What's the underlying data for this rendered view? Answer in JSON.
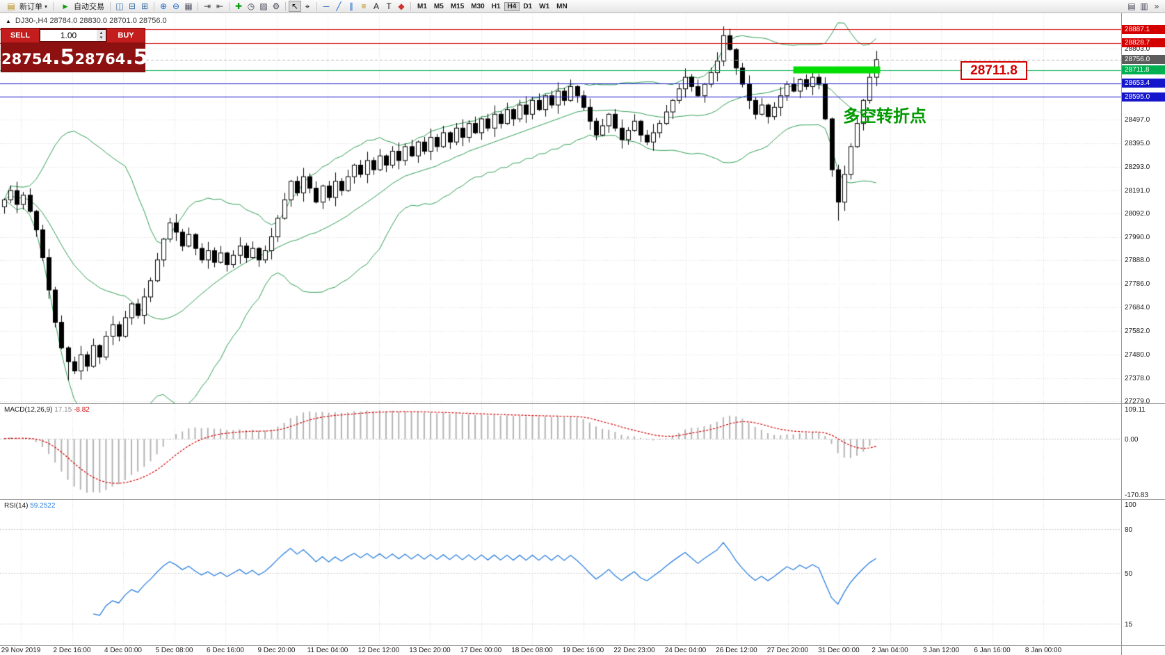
{
  "toolbar": {
    "new_order_label": "新订单",
    "auto_trading_label": "自动交易",
    "timeframes": [
      "M1",
      "M5",
      "M15",
      "M30",
      "H1",
      "H4",
      "D1",
      "W1",
      "MN"
    ],
    "active_timeframe": "H4",
    "icons": [
      {
        "name": "cascade-windows-icon",
        "glyph": "◫",
        "color": "#3a6ea5"
      },
      {
        "name": "tile-windows-horizontal-icon",
        "glyph": "⊟",
        "color": "#3a6ea5"
      },
      {
        "name": "tile-windows-vertical-icon",
        "glyph": "⊞",
        "color": "#3a6ea5"
      },
      {
        "sep": true
      },
      {
        "name": "zoom-in-icon",
        "glyph": "⊕",
        "color": "#1a66cc"
      },
      {
        "name": "zoom-out-icon",
        "glyph": "⊖",
        "color": "#1a66cc"
      },
      {
        "name": "grid-icon",
        "glyph": "▦",
        "color": "#556"
      },
      {
        "sep": true
      },
      {
        "name": "auto-scroll-icon",
        "glyph": "⇥",
        "color": "#444"
      },
      {
        "name": "chart-shift-icon",
        "glyph": "⇤",
        "color": "#444"
      },
      {
        "sep": true
      },
      {
        "name": "indicators-icon",
        "glyph": "✚",
        "color": "#0a9a0a"
      },
      {
        "name": "periods-icon",
        "glyph": "◷",
        "color": "#445"
      },
      {
        "name": "templates-icon",
        "glyph": "▨",
        "color": "#445"
      },
      {
        "name": "chart-properties-icon",
        "glyph": "⚙",
        "color": "#445"
      },
      {
        "sep": true
      },
      {
        "name": "cursor-icon",
        "glyph": "↖",
        "color": "#111",
        "active": true
      },
      {
        "name": "crosshair-icon",
        "glyph": "⌖",
        "color": "#111"
      },
      {
        "sep": true
      },
      {
        "name": "horizontal-line-icon",
        "glyph": "─",
        "color": "#1a66cc"
      },
      {
        "name": "trendline-icon",
        "glyph": "╱",
        "color": "#1a66cc"
      },
      {
        "name": "channel-icon",
        "glyph": "∥",
        "color": "#1a66cc"
      },
      {
        "name": "fibonacci-icon",
        "glyph": "≡",
        "color": "#b8860b"
      },
      {
        "name": "text-icon",
        "glyph": "A",
        "color": "#222"
      },
      {
        "name": "label-icon",
        "glyph": "T",
        "color": "#222"
      },
      {
        "name": "arrows-icon",
        "glyph": "◆",
        "color": "#cc3333"
      },
      {
        "sep": true
      }
    ],
    "right_icons": [
      {
        "name": "print-icon",
        "glyph": "▤"
      },
      {
        "name": "window-layout-icon",
        "glyph": "▥"
      },
      {
        "name": "toolbar-overflow-icon",
        "glyph": "»"
      }
    ]
  },
  "chart_header": {
    "ohlc_label": "DJ30-,H4 28784.0 28830.0 28701.0 28756.0"
  },
  "trade_panel": {
    "sell_label": "SELL",
    "buy_label": "BUY",
    "volume": "1.00",
    "sell_price": "28754",
    "sell_price_big": ".5",
    "buy_price": "28764",
    "buy_price_big": ".5"
  },
  "annotations": {
    "price_callout": "28711.8",
    "turning_point": "多空转折点"
  },
  "chart_data": {
    "type": "candlestick",
    "title": "DJ30-,H4",
    "ylim": [
      27270,
      28960
    ],
    "grid_prices": [
      28803.0,
      28497.0,
      28395.0,
      28293.0,
      28191.0,
      28092.0,
      27990.0,
      27888.0,
      27786.0,
      27684.0,
      27582.0,
      27480.0,
      27378.0,
      27279.0
    ],
    "levels": [
      {
        "label": "28887.1",
        "price": 28887.1,
        "color": "#d40000",
        "badge": "#d40000",
        "style": "solid"
      },
      {
        "label": "28828.7",
        "price": 28828.7,
        "color": "#d40000",
        "badge": "#d40000",
        "style": "solid"
      },
      {
        "label": "28756.0",
        "price": 28756.0,
        "color": "#b5b5b5",
        "badge": "#5c5c5c",
        "style": "dashed"
      },
      {
        "label": "28711.8",
        "price": 28711.8,
        "color": "#00b050",
        "badge": "#00b050",
        "style": "solid"
      },
      {
        "label": "28653.4",
        "price": 28653.4,
        "color": "#1515cc",
        "badge": "#1515cc",
        "style": "solid"
      },
      {
        "label": "28595.0",
        "price": 28595.0,
        "color": "#1515cc",
        "badge": "#1515cc",
        "style": "solid"
      }
    ],
    "highlight_zone": {
      "price": 28711.8,
      "from_bar": 124,
      "to_bar": 137,
      "color": "#00dd00",
      "thickness_px": 10
    },
    "style": {
      "up": "#ffffff",
      "down": "#000000",
      "wick": "#000000"
    },
    "bollinger": {
      "period": 20,
      "deviation": 2,
      "color": "#2e9e53"
    },
    "candles": {
      "first_open": 28120,
      "closes": [
        28150,
        28190,
        28130,
        28170,
        28100,
        28020,
        27900,
        27760,
        27620,
        27510,
        27450,
        27410,
        27480,
        27430,
        27520,
        27470,
        27560,
        27610,
        27560,
        27640,
        27700,
        27650,
        27730,
        27800,
        27890,
        27980,
        28050,
        28010,
        27950,
        28000,
        27940,
        27890,
        27930,
        27880,
        27920,
        27870,
        27910,
        27950,
        27900,
        27940,
        27890,
        27930,
        27990,
        28070,
        28150,
        28230,
        28180,
        28250,
        28200,
        28140,
        28210,
        28160,
        28230,
        28190,
        28250,
        28300,
        28260,
        28320,
        28280,
        28340,
        28300,
        28360,
        28320,
        28380,
        28340,
        28400,
        28360,
        28420,
        28380,
        28440,
        28400,
        28460,
        28420,
        28480,
        28440,
        28500,
        28460,
        28520,
        28480,
        28540,
        28500,
        28560,
        28520,
        28580,
        28540,
        28600,
        28560,
        28620,
        28580,
        28640,
        28600,
        28550,
        28490,
        28430,
        28470,
        28520,
        28460,
        28410,
        28450,
        28490,
        28430,
        28400,
        28440,
        28480,
        28530,
        28580,
        28630,
        28680,
        28640,
        28600,
        28650,
        28700,
        28750,
        28860,
        28800,
        28720,
        28650,
        28580,
        28520,
        28560,
        28510,
        28550,
        28600,
        28650,
        28620,
        28670,
        28640,
        28680,
        28650,
        28500,
        28280,
        28140,
        28260,
        28380,
        28480,
        28580,
        28680,
        28756
      ],
      "wick_overrides": [
        {
          "index": 10,
          "low": 27370
        },
        {
          "index": 113,
          "high": 28900
        },
        {
          "index": 131,
          "low": 28060
        }
      ]
    },
    "macd": {
      "label": "MACD(12,26,9)",
      "main_value": "17.15",
      "signal_value": "-8.82",
      "fast": 12,
      "slow": 26,
      "signal": 9,
      "hist_color": "#b4b4b4",
      "signal_color": "#d40000",
      "axis": [
        "109.11",
        "0.00",
        "-170.83"
      ]
    },
    "rsi": {
      "label": "RSI(14)",
      "value": "59.2522",
      "period": 14,
      "color": "#2a7fde",
      "levels": [
        80,
        50,
        15
      ],
      "axis": [
        "100",
        "80",
        "50",
        "15"
      ]
    },
    "time_labels": [
      "29 Nov 2019",
      "2 Dec 16:00",
      "4 Dec 00:00",
      "5 Dec 08:00",
      "6 Dec 16:00",
      "9 Dec 20:00",
      "11 Dec 04:00",
      "12 Dec 12:00",
      "13 Dec 20:00",
      "17 Dec 00:00",
      "18 Dec 08:00",
      "19 Dec 16:00",
      "22 Dec 23:00",
      "24 Dec 04:00",
      "26 Dec 12:00",
      "27 Dec 20:00",
      "31 Dec 00:00",
      "2 Jan 04:00",
      "3 Jan 12:00",
      "6 Jan 16:00",
      "8 Jan 00:00"
    ]
  }
}
